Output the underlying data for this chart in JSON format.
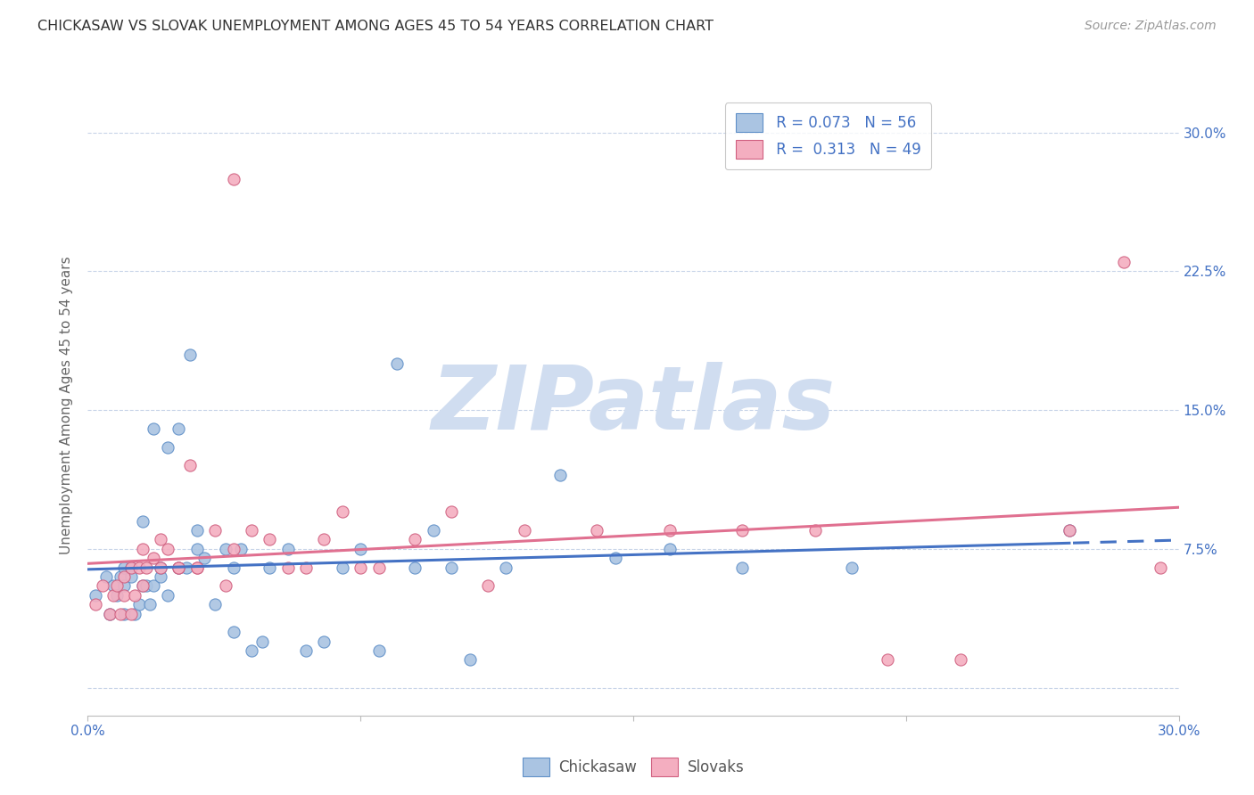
{
  "title": "CHICKASAW VS SLOVAK UNEMPLOYMENT AMONG AGES 45 TO 54 YEARS CORRELATION CHART",
  "source": "Source: ZipAtlas.com",
  "ylabel": "Unemployment Among Ages 45 to 54 years",
  "xlim": [
    0.0,
    0.3
  ],
  "ylim": [
    -0.015,
    0.32
  ],
  "ytick_positions": [
    0.0,
    0.075,
    0.15,
    0.225,
    0.3
  ],
  "ytick_labels_right": [
    "",
    "7.5%",
    "15.0%",
    "22.5%",
    "30.0%"
  ],
  "xtick_vals": [
    0.0,
    0.075,
    0.15,
    0.225,
    0.3
  ],
  "xticklabels": [
    "0.0%",
    "",
    "",
    "",
    "30.0%"
  ],
  "chickasaw_color": "#aac4e2",
  "chickasaw_edge": "#6090c8",
  "slovak_color": "#f4aec0",
  "slovak_edge": "#d06080",
  "trend_chickasaw_color": "#4472c4",
  "trend_slovak_color": "#e07090",
  "background_color": "#ffffff",
  "grid_color": "#c8d4e8",
  "watermark_text": "ZIPatlas",
  "watermark_color": "#d0ddf0",
  "legend_text_color": "#4472c4",
  "bottom_label_color": "#555555",
  "chickasaw_x": [
    0.002,
    0.005,
    0.006,
    0.007,
    0.008,
    0.009,
    0.01,
    0.01,
    0.01,
    0.012,
    0.012,
    0.013,
    0.014,
    0.015,
    0.015,
    0.016,
    0.017,
    0.018,
    0.018,
    0.02,
    0.02,
    0.022,
    0.022,
    0.025,
    0.025,
    0.027,
    0.028,
    0.03,
    0.03,
    0.032,
    0.035,
    0.038,
    0.04,
    0.04,
    0.042,
    0.045,
    0.048,
    0.05,
    0.055,
    0.06,
    0.065,
    0.07,
    0.075,
    0.08,
    0.085,
    0.09,
    0.095,
    0.1,
    0.105,
    0.115,
    0.13,
    0.145,
    0.16,
    0.18,
    0.21,
    0.27
  ],
  "chickasaw_y": [
    0.05,
    0.06,
    0.04,
    0.055,
    0.05,
    0.06,
    0.065,
    0.055,
    0.04,
    0.065,
    0.06,
    0.04,
    0.045,
    0.09,
    0.055,
    0.055,
    0.045,
    0.14,
    0.055,
    0.06,
    0.065,
    0.05,
    0.13,
    0.14,
    0.065,
    0.065,
    0.18,
    0.085,
    0.075,
    0.07,
    0.045,
    0.075,
    0.03,
    0.065,
    0.075,
    0.02,
    0.025,
    0.065,
    0.075,
    0.02,
    0.025,
    0.065,
    0.075,
    0.02,
    0.175,
    0.065,
    0.085,
    0.065,
    0.015,
    0.065,
    0.115,
    0.07,
    0.075,
    0.065,
    0.065,
    0.085
  ],
  "slovak_x": [
    0.002,
    0.004,
    0.006,
    0.007,
    0.008,
    0.009,
    0.01,
    0.01,
    0.012,
    0.012,
    0.013,
    0.014,
    0.015,
    0.015,
    0.016,
    0.018,
    0.02,
    0.02,
    0.022,
    0.025,
    0.025,
    0.028,
    0.03,
    0.03,
    0.035,
    0.038,
    0.04,
    0.04,
    0.045,
    0.05,
    0.055,
    0.06,
    0.065,
    0.07,
    0.075,
    0.08,
    0.09,
    0.1,
    0.11,
    0.12,
    0.14,
    0.16,
    0.18,
    0.2,
    0.22,
    0.24,
    0.27,
    0.285,
    0.295
  ],
  "slovak_y": [
    0.045,
    0.055,
    0.04,
    0.05,
    0.055,
    0.04,
    0.06,
    0.05,
    0.04,
    0.065,
    0.05,
    0.065,
    0.055,
    0.075,
    0.065,
    0.07,
    0.08,
    0.065,
    0.075,
    0.065,
    0.065,
    0.12,
    0.065,
    0.065,
    0.085,
    0.055,
    0.075,
    0.275,
    0.085,
    0.08,
    0.065,
    0.065,
    0.08,
    0.095,
    0.065,
    0.065,
    0.08,
    0.095,
    0.055,
    0.085,
    0.085,
    0.085,
    0.085,
    0.085,
    0.015,
    0.015,
    0.085,
    0.23,
    0.065
  ]
}
